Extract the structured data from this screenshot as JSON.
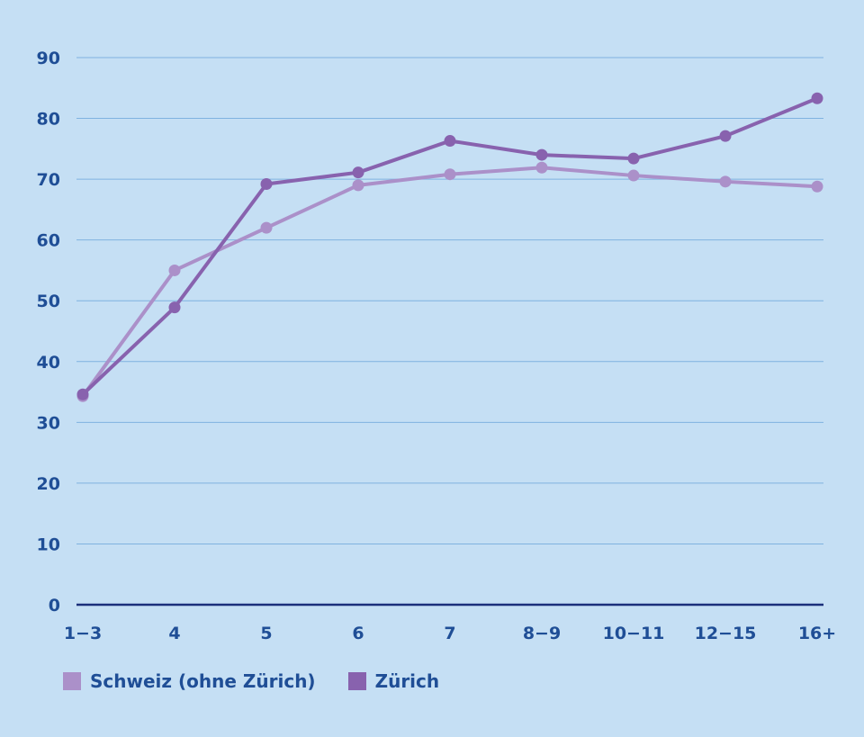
{
  "chart_data": {
    "type": "line",
    "x": [
      "1−3",
      "4",
      "5",
      "6",
      "7",
      "8−9",
      "10−11",
      "12−15",
      "16+"
    ],
    "ylim": [
      0,
      90
    ],
    "yticks": [
      0,
      10,
      20,
      30,
      40,
      50,
      60,
      70,
      80,
      90
    ],
    "grid": true,
    "legend_position": "bottom-left",
    "series": [
      {
        "name": "Schweiz (ohne Zürich)",
        "color": "#ab90c9",
        "values": [
          34.3,
          55,
          62,
          69,
          70.8,
          71.9,
          70.6,
          69.6,
          68.8
        ]
      },
      {
        "name": "Zürich",
        "color": "#8862ae",
        "values": [
          34.6,
          48.9,
          69.2,
          71.1,
          76.3,
          74,
          73.4,
          77.1,
          83.3
        ]
      }
    ]
  }
}
